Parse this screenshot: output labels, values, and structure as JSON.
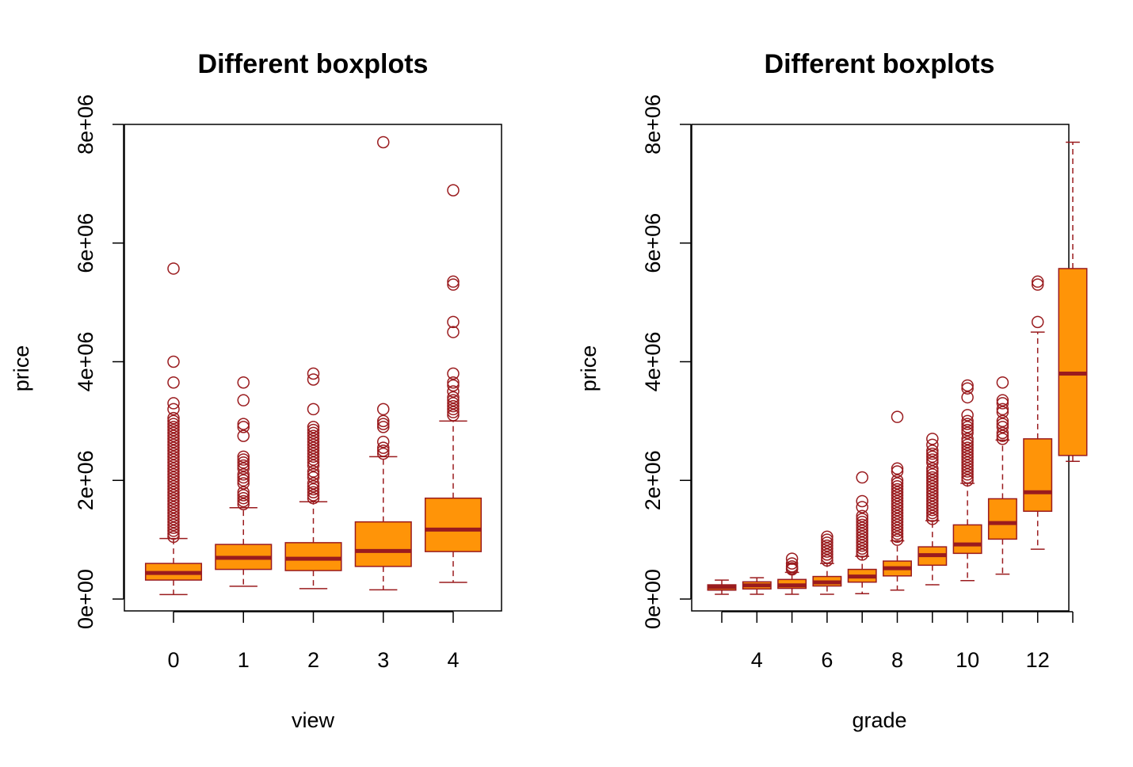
{
  "colors": {
    "box_fill": "#FF9408",
    "box_border": "#9A1B1E",
    "axis": "#000000"
  },
  "chart_data": [
    {
      "type": "boxplot",
      "title": "Different boxplots",
      "xlabel": "view",
      "ylabel": "price",
      "ylim": [
        -200000,
        8000000
      ],
      "yticks": [
        0,
        2000000,
        4000000,
        6000000,
        8000000
      ],
      "ytick_labels": [
        "0e+00",
        "2e+06",
        "4e+06",
        "6e+06",
        "8e+06"
      ],
      "categories": [
        "0",
        "1",
        "2",
        "3",
        "4"
      ],
      "category_tick_labels": [
        "0",
        "1",
        "2",
        "3",
        "4"
      ],
      "boxes": [
        {
          "whisker_low": 75000,
          "q1": 320000,
          "median": 440000,
          "q3": 600000,
          "whisker_high": 1020000,
          "outliers": [
            5570000,
            4000000,
            3650000,
            3300000,
            3200000,
            3050000,
            3000000,
            2950000,
            2900000,
            2850000,
            2800000,
            2750000,
            2700000,
            2650000,
            2600000,
            2550000,
            2500000,
            2450000,
            2400000,
            2350000,
            2300000,
            2250000,
            2200000,
            2150000,
            2100000,
            2050000,
            2000000,
            1950000,
            1900000,
            1850000,
            1800000,
            1750000,
            1700000,
            1650000,
            1600000,
            1550000,
            1500000,
            1450000,
            1400000,
            1350000,
            1300000,
            1250000,
            1200000,
            1150000,
            1100000,
            1050000
          ]
        },
        {
          "whisker_low": 215000,
          "q1": 500000,
          "median": 695000,
          "q3": 920000,
          "whisker_high": 1540000,
          "outliers": [
            3650000,
            3350000,
            2950000,
            2900000,
            2750000,
            2400000,
            2350000,
            2300000,
            2250000,
            2200000,
            2100000,
            2050000,
            2000000,
            1950000,
            1800000,
            1750000,
            1700000,
            1650000,
            1600000
          ]
        },
        {
          "whisker_low": 175000,
          "q1": 480000,
          "median": 680000,
          "q3": 950000,
          "whisker_high": 1640000,
          "outliers": [
            3800000,
            3700000,
            3200000,
            2900000,
            2850000,
            2800000,
            2750000,
            2700000,
            2650000,
            2600000,
            2550000,
            2500000,
            2450000,
            2400000,
            2350000,
            2300000,
            2250000,
            2150000,
            2100000,
            2050000,
            1950000,
            1900000,
            1850000,
            1800000,
            1750000,
            1700000
          ]
        },
        {
          "whisker_low": 155000,
          "q1": 550000,
          "median": 810000,
          "q3": 1300000,
          "whisker_high": 2400000,
          "outliers": [
            7700000,
            3200000,
            3000000,
            2950000,
            2900000,
            2650000,
            2550000,
            2500000,
            2450000
          ]
        },
        {
          "whisker_low": 280000,
          "q1": 800000,
          "median": 1170000,
          "q3": 1700000,
          "whisker_high": 3000000,
          "outliers": [
            6890000,
            5350000,
            5300000,
            4670000,
            4500000,
            3800000,
            3650000,
            3600000,
            3500000,
            3400000,
            3350000,
            3300000,
            3250000,
            3200000,
            3150000,
            3100000
          ]
        }
      ]
    },
    {
      "type": "boxplot",
      "title": "Different boxplots",
      "xlabel": "grade",
      "ylabel": "price",
      "ylim": [
        -200000,
        8000000
      ],
      "yticks": [
        0,
        2000000,
        4000000,
        6000000,
        8000000
      ],
      "ytick_labels": [
        "0e+00",
        "2e+06",
        "4e+06",
        "6e+06",
        "8e+06"
      ],
      "categories": [
        "3",
        "4",
        "5",
        "6",
        "7",
        "8",
        "9",
        "10",
        "11",
        "12",
        "13"
      ],
      "category_tick_labels": [
        "",
        "4",
        "",
        "6",
        "",
        "8",
        "",
        "10",
        "",
        "12",
        ""
      ],
      "boxes": [
        {
          "whisker_low": 80000,
          "q1": 150000,
          "median": 200000,
          "q3": 240000,
          "whisker_high": 320000,
          "outliers": []
        },
        {
          "whisker_low": 80000,
          "q1": 170000,
          "median": 230000,
          "q3": 290000,
          "whisker_high": 360000,
          "outliers": []
        },
        {
          "whisker_low": 80000,
          "q1": 180000,
          "median": 230000,
          "q3": 330000,
          "whisker_high": 450000,
          "outliers": [
            680000,
            600000,
            550000,
            520000,
            500000
          ]
        },
        {
          "whisker_low": 80000,
          "q1": 220000,
          "median": 280000,
          "q3": 380000,
          "whisker_high": 600000,
          "outliers": [
            1050000,
            1000000,
            950000,
            900000,
            850000,
            800000,
            750000,
            700000,
            650000
          ]
        },
        {
          "whisker_low": 90000,
          "q1": 285000,
          "median": 380000,
          "q3": 500000,
          "whisker_high": 720000,
          "outliers": [
            2050000,
            1650000,
            1550000,
            1400000,
            1350000,
            1300000,
            1250000,
            1200000,
            1150000,
            1100000,
            1050000,
            1000000,
            950000,
            900000,
            850000,
            800000,
            750000
          ]
        },
        {
          "whisker_low": 150000,
          "q1": 390000,
          "median": 520000,
          "q3": 640000,
          "whisker_high": 980000,
          "outliers": [
            3070000,
            2200000,
            2150000,
            2000000,
            1950000,
            1900000,
            1850000,
            1800000,
            1750000,
            1700000,
            1650000,
            1600000,
            1550000,
            1500000,
            1450000,
            1400000,
            1350000,
            1300000,
            1250000,
            1200000,
            1150000,
            1100000,
            1050000,
            1000000
          ]
        },
        {
          "whisker_low": 240000,
          "q1": 570000,
          "median": 740000,
          "q3": 880000,
          "whisker_high": 1320000,
          "outliers": [
            2700000,
            2600000,
            2500000,
            2450000,
            2400000,
            2350000,
            2300000,
            2200000,
            2150000,
            2100000,
            2050000,
            2000000,
            1950000,
            1900000,
            1850000,
            1800000,
            1750000,
            1700000,
            1650000,
            1600000,
            1550000,
            1500000,
            1450000,
            1400000,
            1350000
          ]
        },
        {
          "whisker_low": 310000,
          "q1": 770000,
          "median": 920000,
          "q3": 1250000,
          "whisker_high": 1950000,
          "outliers": [
            3600000,
            3550000,
            3400000,
            3100000,
            3000000,
            2950000,
            2900000,
            2850000,
            2800000,
            2700000,
            2650000,
            2600000,
            2550000,
            2500000,
            2450000,
            2400000,
            2350000,
            2300000,
            2250000,
            2200000,
            2150000,
            2100000,
            2050000,
            2000000
          ]
        },
        {
          "whisker_low": 420000,
          "q1": 1010000,
          "median": 1280000,
          "q3": 1690000,
          "whisker_high": 2680000,
          "outliers": [
            3650000,
            3350000,
            3300000,
            3200000,
            3150000,
            3000000,
            2950000,
            2900000,
            2800000,
            2750000,
            2700000
          ]
        },
        {
          "whisker_low": 840000,
          "q1": 1480000,
          "median": 1800000,
          "q3": 2700000,
          "whisker_high": 4500000,
          "outliers": [
            5350000,
            5300000,
            4670000
          ]
        },
        {
          "whisker_low": 2320000,
          "q1": 2420000,
          "median": 3800000,
          "q3": 5570000,
          "whisker_high": 7700000,
          "outliers": []
        }
      ]
    }
  ]
}
